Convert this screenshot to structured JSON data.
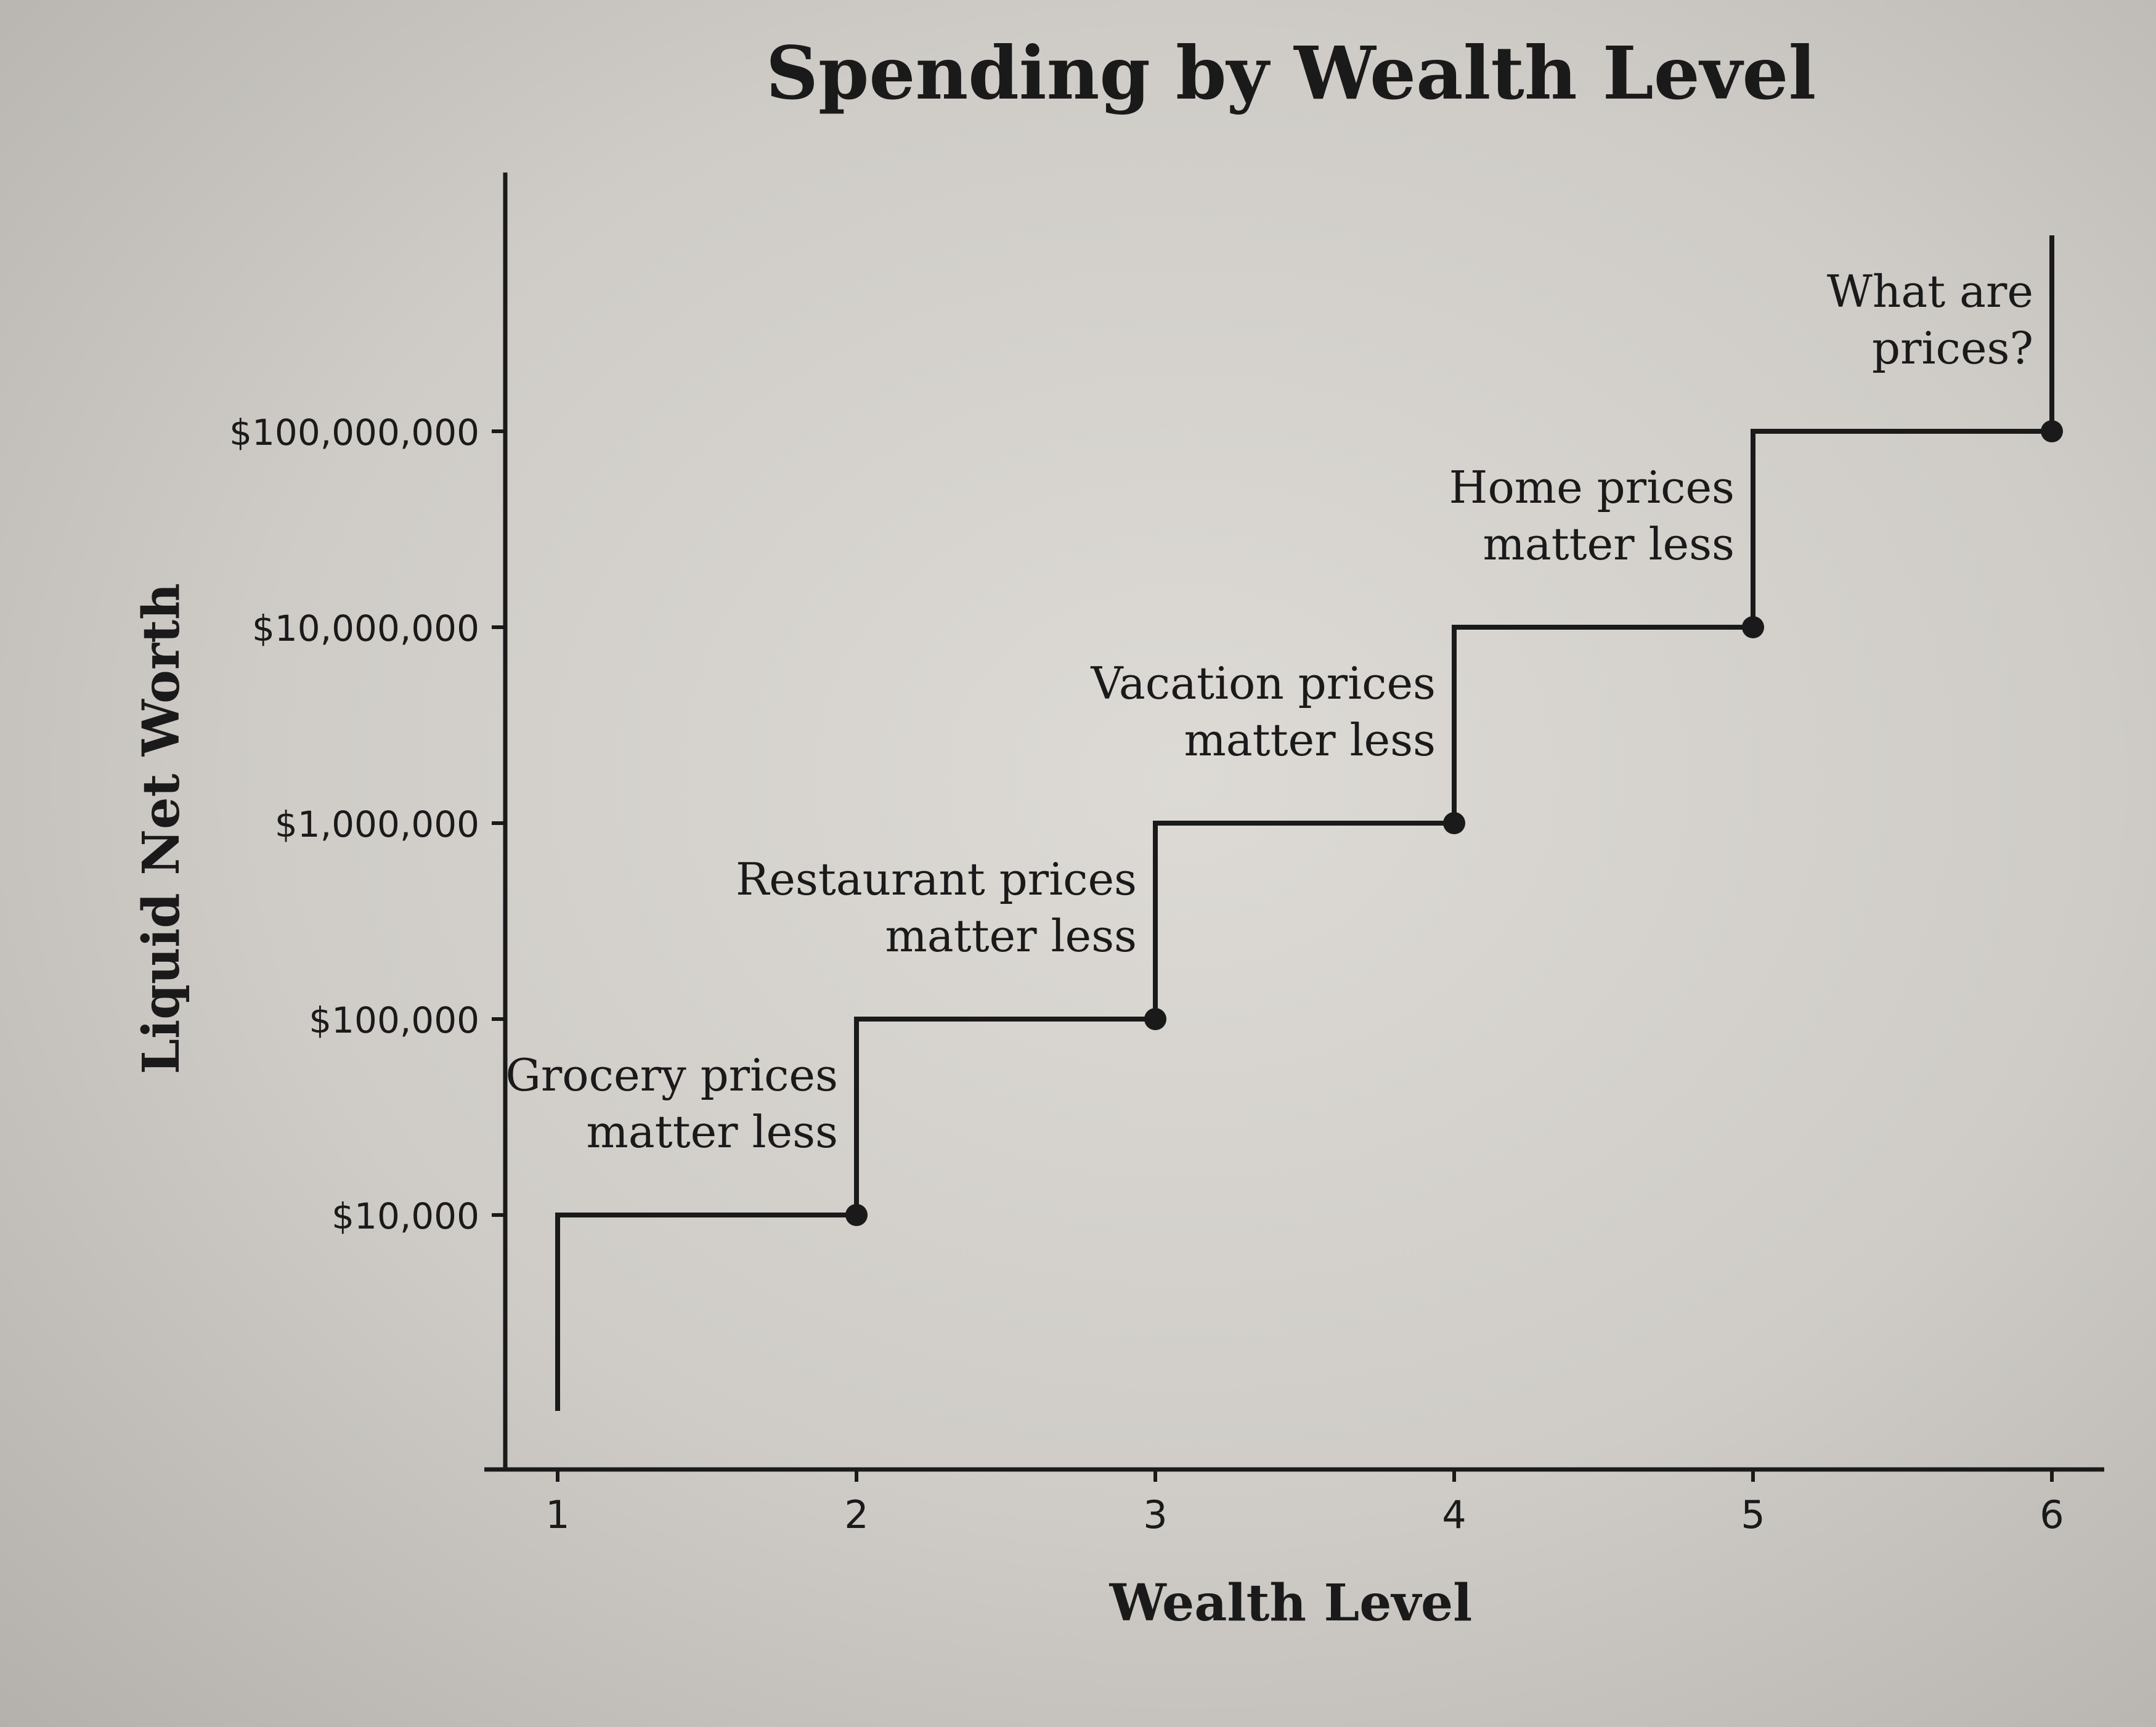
{
  "chart_data": {
    "type": "line",
    "title": "Spending by Wealth Level",
    "xlabel": "Wealth Level",
    "ylabel": "Liquid Net Worth",
    "x_ticks": [
      1,
      2,
      3,
      4,
      5,
      6
    ],
    "x_tick_labels": [
      "1",
      "2",
      "3",
      "4",
      "5",
      "6"
    ],
    "y_scale": "log",
    "y_ticks": [
      10000,
      100000,
      1000000,
      10000000,
      100000000
    ],
    "y_tick_labels": [
      "$10,000",
      "$100,000",
      "$1,000,000",
      "$10,000,000",
      "$100,000,000"
    ],
    "xlim": [
      0.75,
      6.25
    ],
    "ylim": [
      500,
      1500000000
    ],
    "grid": false,
    "series": [
      {
        "step": "pre",
        "x": [
          1,
          1,
          2,
          2,
          3,
          3,
          4,
          4,
          5,
          5,
          6,
          6
        ],
        "y": [
          1000,
          10000,
          10000,
          100000,
          100000,
          1000000,
          1000000,
          10000000,
          10000000,
          100000000,
          100000000,
          1000000000
        ]
      }
    ],
    "points": [
      {
        "x": 2,
        "y": 10000
      },
      {
        "x": 3,
        "y": 100000
      },
      {
        "x": 4,
        "y": 1000000
      },
      {
        "x": 5,
        "y": 10000000
      },
      {
        "x": 6,
        "y": 100000000
      }
    ],
    "annotations": [
      {
        "level": 1,
        "lines": [
          "Grocery prices",
          "matter less"
        ]
      },
      {
        "level": 2,
        "lines": [
          "Restaurant prices",
          "matter less"
        ]
      },
      {
        "level": 3,
        "lines": [
          "Vacation prices",
          "matter less"
        ]
      },
      {
        "level": 4,
        "lines": [
          "Home prices",
          "matter less"
        ]
      },
      {
        "level": 5,
        "lines": [
          "What are",
          "prices?"
        ]
      }
    ],
    "colors": {
      "ink": "#1a1a1a",
      "paper": "#d8d5d0"
    }
  }
}
